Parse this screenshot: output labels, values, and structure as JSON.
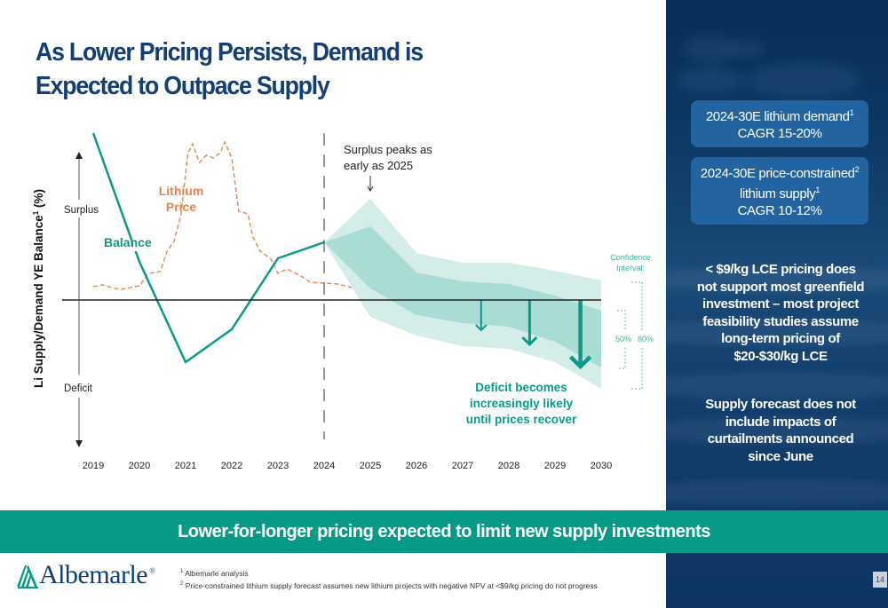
{
  "title_lines": [
    "As Lower Pricing Persists, Demand is",
    "Expected to Outpace Supply"
  ],
  "chart_data": {
    "type": "line",
    "title": "",
    "ylabel": "Li Supply/Demand YE Balance",
    "ylabel_superscript": "1",
    "ylabel_suffix": " (%)",
    "xlabel": "",
    "x": [
      2019,
      2020,
      2021,
      2022,
      2023,
      2024,
      2025,
      2026,
      2027,
      2028,
      2029,
      2030
    ],
    "y_axis_labels": {
      "top": "Surplus",
      "bottom": "Deficit"
    },
    "ylim": [
      -16,
      18
    ],
    "zero_line": 0,
    "forecast_start": 2024,
    "series": [
      {
        "name": "Balance",
        "color": "#0a9a86",
        "style": "solid",
        "points": [
          [
            2019,
            18.8
          ],
          [
            2020,
            4.3
          ],
          [
            2021,
            -7.0
          ],
          [
            2022,
            -3.3
          ],
          [
            2023,
            4.7
          ],
          [
            2024,
            6.5
          ]
        ]
      },
      {
        "name": "Lithium Price",
        "label_lines": [
          "Lithium",
          "Price"
        ],
        "color": "#e8844a",
        "style": "dashed",
        "relative_units": true,
        "points": [
          [
            2019.0,
            1.5
          ],
          [
            2019.2,
            1.7
          ],
          [
            2019.4,
            1.4
          ],
          [
            2019.6,
            1.2
          ],
          [
            2019.8,
            1.4
          ],
          [
            2020.0,
            1.6
          ],
          [
            2020.2,
            3.0
          ],
          [
            2020.45,
            3.2
          ],
          [
            2020.6,
            5.5
          ],
          [
            2020.75,
            6.6
          ],
          [
            2020.9,
            9.6
          ],
          [
            2021.05,
            16.5
          ],
          [
            2021.15,
            17.6
          ],
          [
            2021.3,
            15.5
          ],
          [
            2021.45,
            16.3
          ],
          [
            2021.6,
            16.0
          ],
          [
            2021.75,
            16.6
          ],
          [
            2021.85,
            17.8
          ],
          [
            2022.0,
            16.0
          ],
          [
            2022.15,
            10.0
          ],
          [
            2022.35,
            9.7
          ],
          [
            2022.45,
            7.2
          ],
          [
            2022.6,
            5.6
          ],
          [
            2022.85,
            4.6
          ],
          [
            2023.0,
            3.0
          ],
          [
            2023.2,
            3.5
          ],
          [
            2023.5,
            2.7
          ],
          [
            2023.7,
            2.0
          ],
          [
            2024.0,
            1.9
          ],
          [
            2024.3,
            1.8
          ],
          [
            2024.6,
            1.4
          ]
        ]
      }
    ],
    "confidence_bands": [
      {
        "name": "80%",
        "color": "#d5ede9",
        "upper": [
          [
            2024,
            6.5
          ],
          [
            2025,
            11.4
          ],
          [
            2026,
            5.3
          ],
          [
            2027,
            4.2
          ],
          [
            2028,
            4.2
          ],
          [
            2029,
            3.3
          ],
          [
            2030,
            2.2
          ]
        ],
        "lower": [
          [
            2024,
            6.5
          ],
          [
            2025,
            -1.9
          ],
          [
            2026,
            -4.0
          ],
          [
            2027,
            -5.2
          ],
          [
            2028,
            -5.5
          ],
          [
            2029,
            -7.0
          ],
          [
            2030,
            -10.0
          ]
        ]
      },
      {
        "name": "50%",
        "color": "#a9dcd4",
        "upper": [
          [
            2024,
            6.5
          ],
          [
            2025,
            8.3
          ],
          [
            2026,
            3.1
          ],
          [
            2027,
            2.1
          ],
          [
            2028,
            1.8
          ],
          [
            2029,
            0.5
          ],
          [
            2030,
            -1.2
          ]
        ],
        "lower": [
          [
            2024,
            6.5
          ],
          [
            2025,
            1.3
          ],
          [
            2026,
            -1.7
          ],
          [
            2027,
            -2.6
          ],
          [
            2028,
            -3.0
          ],
          [
            2029,
            -4.7
          ],
          [
            2030,
            -7.6
          ]
        ]
      }
    ],
    "deficit_arrows": [
      {
        "x": 2027.4,
        "to": -3.4,
        "weight": "thin"
      },
      {
        "x": 2028.45,
        "to": -5.0,
        "weight": "medium"
      },
      {
        "x": 2029.55,
        "to": -7.5,
        "weight": "thick"
      }
    ],
    "annotations": {
      "surplus_peak": [
        "Surplus peaks as",
        "early as 2025"
      ],
      "surplus_peak_x": 2025,
      "deficit": [
        "Deficit becomes",
        "increasingly likely",
        "until prices recover"
      ],
      "confidence_title": [
        "Confidence",
        "Interval:"
      ],
      "ci_50": "50%",
      "ci_80": "80%"
    },
    "legend": "inline"
  },
  "sidebar": {
    "kpi1": {
      "line1": "2024-30E lithium demand",
      "sup1": "1",
      "line2": "CAGR 15-20%"
    },
    "kpi2": {
      "line1": "2024-30E price-constrained",
      "sup1": "2",
      "line2": "lithium supply",
      "sup2": "1",
      "line3": "CAGR 10-12%"
    },
    "note1": [
      "< $9/kg LCE pricing does",
      "not support most greenfield",
      "investment – most project",
      "feasibility studies assume",
      "long-term pricing of",
      "$20-$30/kg LCE"
    ],
    "note2": [
      "Supply forecast does not",
      "include impacts of",
      "curtailments announced",
      "since June"
    ]
  },
  "banner": "Lower-for-longer pricing expected to limit new supply investments",
  "logo": {
    "name": "Albemarle",
    "reg": "®"
  },
  "footnotes": [
    {
      "num": "1",
      "text": "Albemarle analysis"
    },
    {
      "num": "2",
      "text": "Price-constrained lithium supply forecast assumes new lithium projects with negative NPV at <$9/kg pricing do not progress"
    }
  ],
  "page_number": "14",
  "colors": {
    "title": "#123f74",
    "teal": "#0a9a86",
    "orange": "#e8844a",
    "banner": "#069a87",
    "sidebar": "#0b3763",
    "kpi": "#2363a0"
  }
}
